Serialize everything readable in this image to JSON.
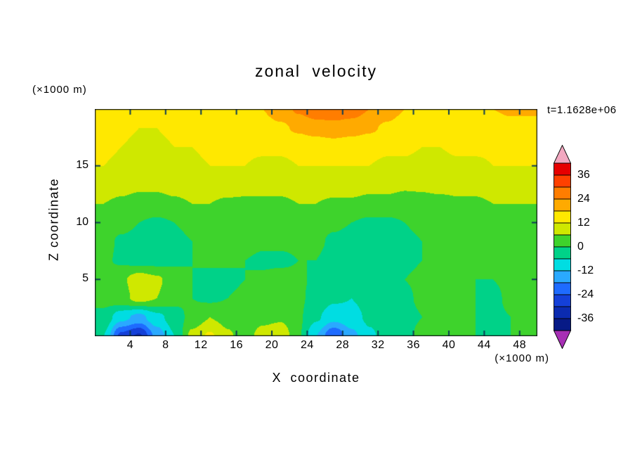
{
  "chart": {
    "title": "zonal velocity",
    "xlabel": "X coordinate",
    "ylabel": "Z coordinate",
    "x_units": "(×1000 m)",
    "y_units": "(×1000 m)",
    "time_label": "t=1.1628e+06"
  },
  "chart_data": {
    "type": "heatmap",
    "subtype": "filled-contour",
    "title": "zonal velocity",
    "xlabel": "X coordinate",
    "ylabel": "Z coordinate",
    "x_range": [
      0,
      50
    ],
    "z_range": [
      0,
      20
    ],
    "x_ticks": [
      4,
      8,
      12,
      16,
      20,
      24,
      28,
      32,
      36,
      40,
      44,
      48
    ],
    "z_ticks": [
      5,
      10,
      15
    ],
    "levels_step": 6,
    "colorbar": {
      "min": -42,
      "max": 42,
      "labels": [
        36,
        24,
        12,
        0,
        -12,
        -24,
        -36
      ],
      "colors_low_to_high": [
        "#071a86",
        "#0b2bb0",
        "#1440d8",
        "#1e6bff",
        "#2aa9ff",
        "#00dde2",
        "#00d288",
        "#3ed32c",
        "#cfe800",
        "#ffe800",
        "#ffaa00",
        "#ff7d00",
        "#ff4000",
        "#e60000"
      ],
      "under_color": "#a72fb5",
      "over_color": "#f2a8c0"
    },
    "grid": {
      "x": [
        1,
        3,
        5,
        7,
        9,
        11,
        13,
        15,
        17,
        19,
        21,
        23,
        25,
        27,
        29,
        31,
        33,
        35,
        37,
        39,
        41,
        43,
        45,
        47,
        49
      ],
      "z": [
        20,
        18.33,
        16.67,
        15,
        13.33,
        11.67,
        10,
        8.33,
        6.67,
        5,
        3.33,
        1.67,
        0
      ],
      "values": [
        [
          14,
          14,
          13,
          13,
          14,
          14,
          15,
          15,
          16,
          18,
          21,
          25,
          28,
          28,
          27,
          24,
          21,
          18,
          17,
          16,
          16,
          17,
          18,
          19,
          19
        ],
        [
          13,
          13,
          12,
          12,
          13,
          13,
          14,
          14,
          15,
          16,
          17,
          19,
          21,
          22,
          21,
          19,
          17,
          15,
          15,
          14,
          14,
          15,
          15,
          16,
          16
        ],
        [
          13,
          12,
          11,
          11,
          12,
          12,
          13,
          13,
          13,
          13,
          13,
          14,
          14,
          15,
          14,
          14,
          13,
          13,
          12,
          12,
          13,
          13,
          13,
          14,
          14
        ],
        [
          12,
          11,
          9,
          9,
          10,
          11,
          12,
          12,
          12,
          11,
          11,
          12,
          12,
          12,
          12,
          12,
          11,
          11,
          10,
          10,
          11,
          11,
          12,
          12,
          12
        ],
        [
          9,
          8,
          7,
          7,
          8,
          9,
          9,
          9,
          8,
          8,
          8,
          9,
          9,
          9,
          9,
          8,
          8,
          7,
          7,
          8,
          8,
          8,
          9,
          9,
          9
        ],
        [
          6,
          5,
          4,
          4,
          5,
          6,
          6,
          5,
          5,
          5,
          5,
          6,
          6,
          5,
          5,
          4,
          4,
          3,
          4,
          4,
          5,
          5,
          6,
          6,
          6
        ],
        [
          3,
          2,
          0,
          -1,
          0,
          2,
          3,
          3,
          3,
          2,
          2,
          3,
          2,
          1,
          0,
          -1,
          -1,
          0,
          1,
          2,
          3,
          3,
          4,
          4,
          4
        ],
        [
          2,
          -1,
          -2,
          -3,
          -2,
          0,
          2,
          2,
          2,
          1,
          1,
          1,
          1,
          -1,
          -2,
          -3,
          -2,
          -1,
          0,
          1,
          2,
          2,
          3,
          3,
          3
        ],
        [
          1,
          -1,
          -2,
          -2,
          -1,
          0,
          1,
          1,
          0,
          -1,
          -1,
          0,
          0,
          -2,
          -3,
          -4,
          -3,
          -1,
          0,
          1,
          1,
          1,
          2,
          2,
          2
        ],
        [
          2,
          5,
          9,
          7,
          3,
          0,
          -2,
          -2,
          0,
          1,
          2,
          1,
          -1,
          -3,
          -5,
          -4,
          -2,
          0,
          1,
          2,
          1,
          0,
          0,
          1,
          2
        ],
        [
          2,
          4,
          8,
          6,
          2,
          0,
          -1,
          0,
          2,
          3,
          3,
          1,
          -2,
          -5,
          -6,
          -4,
          -2,
          -1,
          1,
          2,
          1,
          0,
          -1,
          1,
          2
        ],
        [
          -2,
          -10,
          -14,
          -8,
          -3,
          2,
          6,
          4,
          2,
          4,
          5,
          1,
          -5,
          -10,
          -8,
          -5,
          -3,
          -2,
          0,
          2,
          2,
          0,
          -1,
          0,
          1
        ],
        [
          -6,
          -26,
          -31,
          -16,
          -6,
          8,
          13,
          7,
          3,
          9,
          11,
          1,
          -12,
          -24,
          -14,
          -7,
          -4,
          -2,
          2,
          4,
          3,
          0,
          -2,
          0,
          2
        ]
      ]
    }
  }
}
